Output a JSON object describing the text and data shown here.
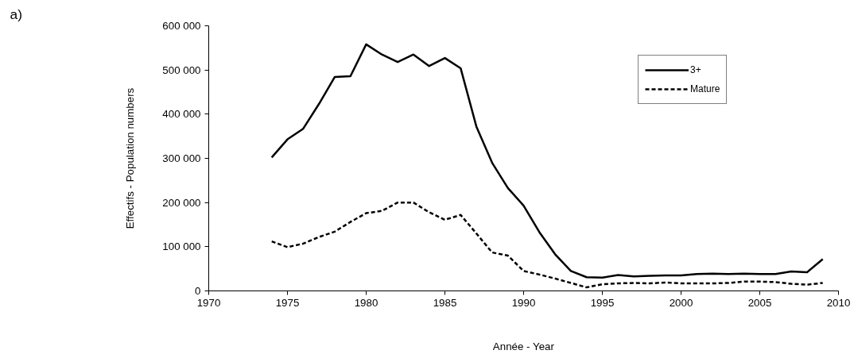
{
  "chart_data": {
    "type": "line",
    "title": "a)",
    "xlabel": "Année - Year",
    "ylabel": "Effectifs - Population numbers",
    "x": [
      1974,
      1975,
      1976,
      1977,
      1978,
      1979,
      1980,
      1981,
      1982,
      1983,
      1984,
      1985,
      1986,
      1987,
      1988,
      1989,
      1990,
      1991,
      1992,
      1993,
      1994,
      1995,
      1996,
      1997,
      1998,
      1999,
      2000,
      2001,
      2002,
      2003,
      2004,
      2005,
      2006,
      2007,
      2008,
      2009
    ],
    "series": [
      {
        "name": "3+",
        "color": "#000000",
        "line_style": "solid",
        "values": [
          302000,
          343000,
          367000,
          423000,
          484000,
          486000,
          558000,
          535000,
          518000,
          535000,
          509000,
          527000,
          504000,
          372000,
          290000,
          233000,
          193000,
          133000,
          83000,
          45000,
          31000,
          30000,
          36000,
          33000,
          34000,
          35000,
          35000,
          38000,
          39000,
          38000,
          39000,
          38000,
          38000,
          44000,
          42000,
          72000
        ]
      },
      {
        "name": "Mature",
        "color": "#000000",
        "line_style": "dashed",
        "values": [
          112000,
          99000,
          107000,
          122000,
          134000,
          156000,
          176000,
          181000,
          200000,
          200000,
          178000,
          161000,
          172000,
          130000,
          87000,
          80000,
          45000,
          37000,
          28000,
          18000,
          8000,
          15000,
          17000,
          18000,
          17000,
          19000,
          17000,
          17000,
          17000,
          18000,
          21000,
          21000,
          20000,
          16000,
          14000,
          18000
        ]
      }
    ],
    "xlim": [
      1970,
      2010
    ],
    "xticks": [
      1970,
      1975,
      1980,
      1985,
      1990,
      1995,
      2000,
      2005,
      2010
    ],
    "ylim": [
      0,
      600000
    ],
    "yticks": [
      {
        "value": 0,
        "label": "0"
      },
      {
        "value": 100000,
        "label": "100 000"
      },
      {
        "value": 200000,
        "label": "200 000"
      },
      {
        "value": 300000,
        "label": "300 000"
      },
      {
        "value": 400000,
        "label": "400 000"
      },
      {
        "value": 500000,
        "label": "500 000"
      },
      {
        "value": 600000,
        "label": "600 000"
      }
    ],
    "grid": false,
    "legend": "top right",
    "marker": "none"
  }
}
